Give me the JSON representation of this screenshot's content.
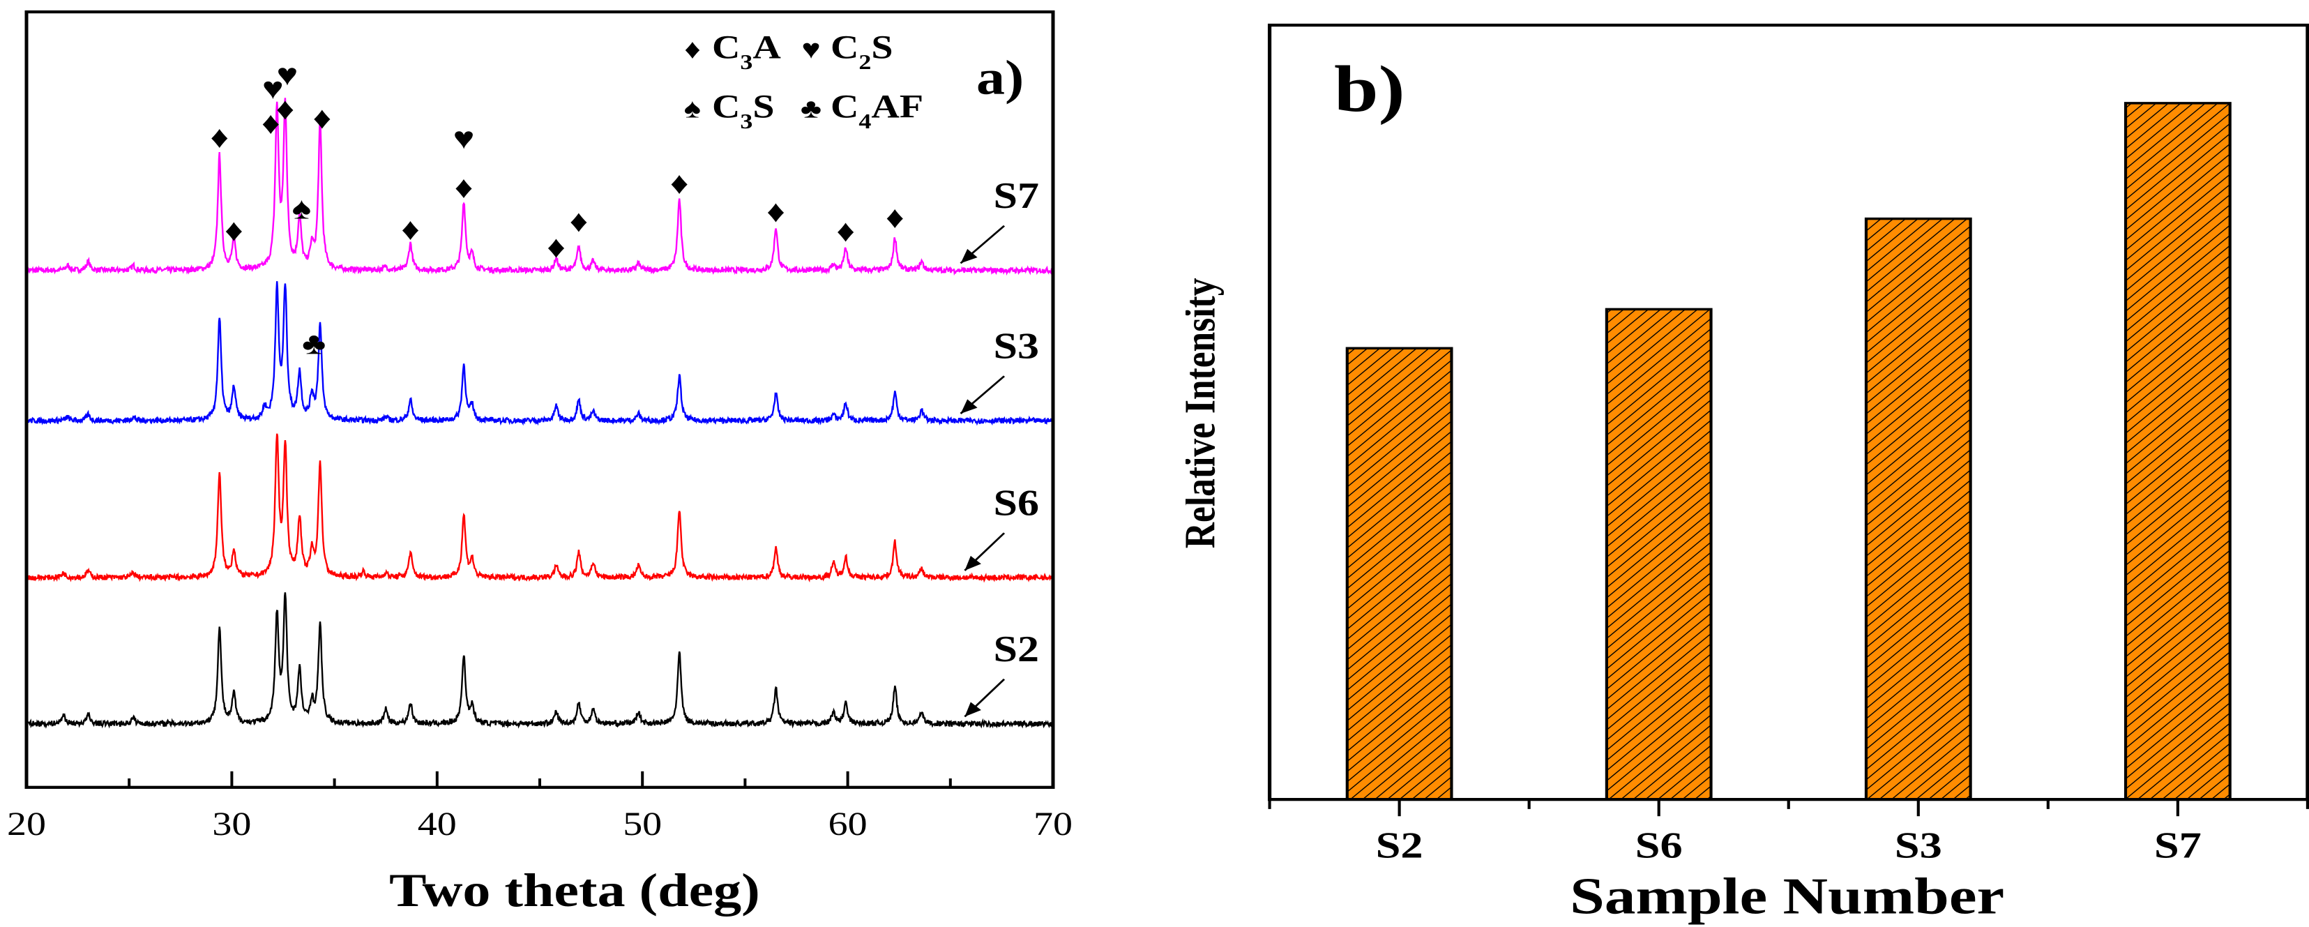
{
  "chart_data": [
    {
      "type": "line",
      "panel_label": "a)",
      "xlabel": "Two theta (deg)",
      "ylabel": "",
      "xlim": [
        20,
        70
      ],
      "ylim": [
        0,
        1305
      ],
      "x_ticks": [
        "20",
        "30",
        "40",
        "50",
        "60",
        "70"
      ],
      "x_tick_values": [
        20,
        30,
        40,
        50,
        60,
        70
      ],
      "x_minor_ticks": [
        25,
        35,
        45,
        55,
        65
      ],
      "grid": false,
      "peak_width_deg": 0.13,
      "series": [
        {
          "name": "S7",
          "color": "#FF00FF",
          "offset": 870,
          "arrow_x": 65.5,
          "peaks": [
            [
              22,
              8
            ],
            [
              23,
              15
            ],
            [
              25.2,
              8
            ],
            [
              29.4,
              193
            ],
            [
              30.1,
              50
            ],
            [
              32.2,
              265
            ],
            [
              32.6,
              270
            ],
            [
              33.3,
              85
            ],
            [
              33.9,
              35
            ],
            [
              34.3,
              245
            ],
            [
              37.5,
              6
            ],
            [
              38.7,
              45
            ],
            [
              41.3,
              115
            ],
            [
              41.7,
              25
            ],
            [
              45.8,
              20
            ],
            [
              46.9,
              40
            ],
            [
              47.6,
              15
            ],
            [
              49.8,
              12
            ],
            [
              51.8,
              120
            ],
            [
              56.5,
              72
            ],
            [
              59.3,
              10
            ],
            [
              59.9,
              37
            ],
            [
              62.3,
              55
            ],
            [
              63.6,
              15
            ]
          ]
        },
        {
          "name": "S3",
          "color": "#0000FF",
          "offset": 617,
          "arrow_x": 65.5,
          "peaks": [
            [
              22,
              6
            ],
            [
              23,
              10
            ],
            [
              25.2,
              6
            ],
            [
              29.4,
              171
            ],
            [
              30.1,
              55
            ],
            [
              31.6,
              20
            ],
            [
              32.2,
              215
            ],
            [
              32.6,
              218
            ],
            [
              33.3,
              78
            ],
            [
              33.9,
              40
            ],
            [
              34.3,
              160
            ],
            [
              37.5,
              6
            ],
            [
              38.7,
              35
            ],
            [
              41.3,
              93
            ],
            [
              41.7,
              25
            ],
            [
              45.8,
              25
            ],
            [
              46.9,
              35
            ],
            [
              47.6,
              15
            ],
            [
              49.8,
              12
            ],
            [
              51.8,
              76
            ],
            [
              56.5,
              46
            ],
            [
              59.3,
              10
            ],
            [
              59.9,
              30
            ],
            [
              62.3,
              48
            ],
            [
              63.6,
              18
            ]
          ]
        },
        {
          "name": "S6",
          "color": "#FF0000",
          "offset": 353,
          "arrow_x": 65.7,
          "peaks": [
            [
              21.8,
              8
            ],
            [
              23,
              12
            ],
            [
              25.2,
              8
            ],
            [
              29.4,
              177
            ],
            [
              30.1,
              45
            ],
            [
              32.2,
              229
            ],
            [
              32.6,
              217
            ],
            [
              33.3,
              99
            ],
            [
              33.9,
              40
            ],
            [
              34.3,
              192
            ],
            [
              36.4,
              10
            ],
            [
              37.5,
              8
            ],
            [
              38.7,
              42
            ],
            [
              41.3,
              105
            ],
            [
              41.7,
              30
            ],
            [
              45.8,
              20
            ],
            [
              46.9,
              42
            ],
            [
              47.6,
              25
            ],
            [
              49.8,
              20
            ],
            [
              51.8,
              115
            ],
            [
              56.5,
              50
            ],
            [
              59.3,
              25
            ],
            [
              59.9,
              35
            ],
            [
              62.3,
              60
            ],
            [
              63.6,
              15
            ]
          ]
        },
        {
          "name": "S2",
          "color": "#000000",
          "offset": 107,
          "arrow_x": 65.7,
          "peaks": [
            [
              21.8,
              15
            ],
            [
              23,
              15
            ],
            [
              25.2,
              10
            ],
            [
              29.4,
              163
            ],
            [
              30.1,
              50
            ],
            [
              32.2,
              180
            ],
            [
              32.6,
              208
            ],
            [
              33.3,
              88
            ],
            [
              33.9,
              35
            ],
            [
              34.3,
              165
            ],
            [
              37.5,
              25
            ],
            [
              38.7,
              35
            ],
            [
              41.3,
              115
            ],
            [
              41.7,
              30
            ],
            [
              45.8,
              20
            ],
            [
              46.9,
              35
            ],
            [
              47.6,
              25
            ],
            [
              49.8,
              20
            ],
            [
              51.8,
              120
            ],
            [
              56.5,
              60
            ],
            [
              59.3,
              20
            ],
            [
              59.9,
              35
            ],
            [
              62.3,
              62
            ],
            [
              63.6,
              20
            ]
          ]
        }
      ],
      "legend": [
        {
          "symbol": "♦",
          "icon": "diamond-icon",
          "pre": "C",
          "sub": "3",
          "post": "A",
          "phase": "C3A"
        },
        {
          "symbol": "♥",
          "icon": "heart-icon",
          "pre": "C",
          "sub": "2",
          "post": "S",
          "phase": "C2S"
        },
        {
          "symbol": "♠",
          "icon": "spade-icon",
          "pre": "C",
          "sub": "3",
          "post": "S",
          "phase": "C3S"
        },
        {
          "symbol": "♣",
          "icon": "club-icon",
          "pre": "C",
          "sub": "4",
          "post": "AF",
          "phase": "C4AF"
        }
      ],
      "legend_placement": "top-right",
      "annotations": [
        {
          "symbol": "♦",
          "x": 29.4,
          "y": 1095
        },
        {
          "symbol": "♦",
          "x": 30.1,
          "y": 938
        },
        {
          "symbol": "♥",
          "x": 32.0,
          "y": 1177
        },
        {
          "symbol": "♦",
          "x": 31.9,
          "y": 1118
        },
        {
          "symbol": "♥",
          "x": 32.7,
          "y": 1200
        },
        {
          "symbol": "♦",
          "x": 32.6,
          "y": 1142
        },
        {
          "symbol": "♠",
          "x": 33.4,
          "y": 975
        },
        {
          "symbol": "♦",
          "x": 34.4,
          "y": 1127
        },
        {
          "symbol": "♦",
          "x": 38.7,
          "y": 940
        },
        {
          "symbol": "♥",
          "x": 41.3,
          "y": 1093
        },
        {
          "symbol": "♦",
          "x": 41.3,
          "y": 1010
        },
        {
          "symbol": "♦",
          "x": 45.8,
          "y": 910
        },
        {
          "symbol": "♦",
          "x": 46.9,
          "y": 953
        },
        {
          "symbol": "♦",
          "x": 51.8,
          "y": 1017
        },
        {
          "symbol": "♦",
          "x": 56.5,
          "y": 970
        },
        {
          "symbol": "♦",
          "x": 59.9,
          "y": 937
        },
        {
          "symbol": "♦",
          "x": 62.3,
          "y": 960
        },
        {
          "symbol": "♣",
          "x": 34.0,
          "y": 747
        }
      ]
    },
    {
      "type": "bar",
      "panel_label": "b)",
      "title": "",
      "xlabel": "Sample Number",
      "ylabel": "Relative Intensity",
      "categories": [
        "S2",
        "S6",
        "S3",
        "S7"
      ],
      "values": [
        0.648,
        0.704,
        0.834,
        1.0
      ],
      "ylim": [
        0,
        1.112
      ],
      "bar_color": "#FF8C00",
      "hatch": "diagonal",
      "grid": false
    }
  ]
}
